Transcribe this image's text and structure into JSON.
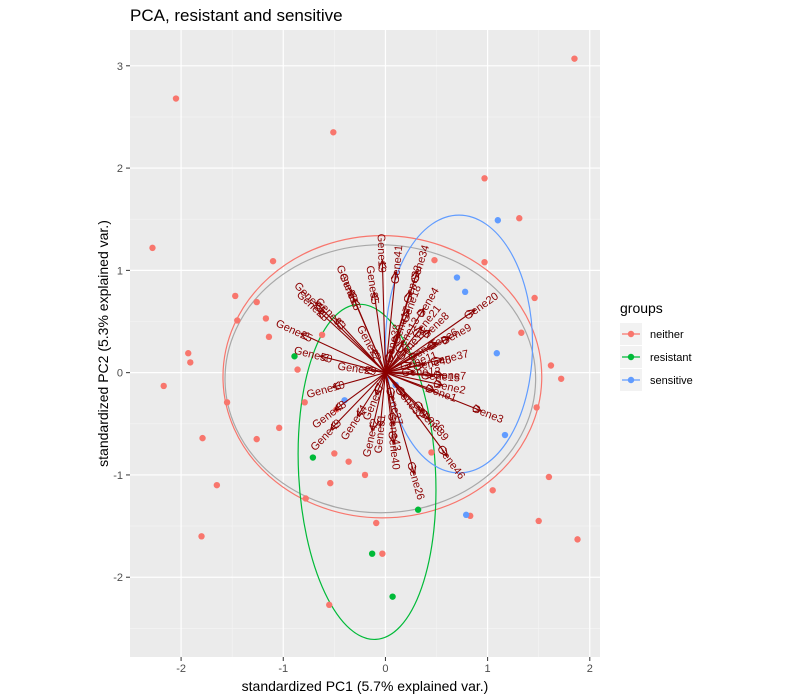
{
  "chart_data": {
    "type": "scatter",
    "title": "PCA, resistant and sensitive",
    "xlabel": "standardized PC1 (5.7% explained var.)",
    "ylabel": "standardized PC2 (5.3% explained var.)",
    "xlim": [
      -2.5,
      2.1
    ],
    "ylim": [
      -2.78,
      3.35
    ],
    "x_ticks": [
      -2,
      -1,
      0,
      1,
      2
    ],
    "y_ticks": [
      -2,
      -1,
      0,
      1,
      2,
      3
    ],
    "grid": true,
    "legend": {
      "title": "groups",
      "position": "right",
      "entries": [
        "neither",
        "resistant",
        "sensitive"
      ]
    },
    "series": [
      {
        "name": "neither",
        "color": "#F8766D",
        "points": [
          [
            1.85,
            3.07
          ],
          [
            -2.05,
            2.68
          ],
          [
            -0.51,
            2.35
          ],
          [
            0.97,
            1.9
          ],
          [
            1.31,
            1.51
          ],
          [
            -2.28,
            1.22
          ],
          [
            -1.1,
            1.09
          ],
          [
            0.48,
            1.1
          ],
          [
            0.97,
            1.08
          ],
          [
            -1.47,
            0.75
          ],
          [
            1.46,
            0.73
          ],
          [
            -1.26,
            0.69
          ],
          [
            -1.17,
            0.53
          ],
          [
            -1.45,
            0.51
          ],
          [
            -0.62,
            0.37
          ],
          [
            1.33,
            0.39
          ],
          [
            -1.14,
            0.35
          ],
          [
            -1.93,
            0.19
          ],
          [
            -1.91,
            0.1
          ],
          [
            1.62,
            0.07
          ],
          [
            1.72,
            -0.06
          ],
          [
            -0.86,
            0.03
          ],
          [
            -2.17,
            -0.13
          ],
          [
            -1.55,
            -0.29
          ],
          [
            -0.79,
            -0.29
          ],
          [
            -0.48,
            -0.36
          ],
          [
            1.48,
            -0.34
          ],
          [
            -1.04,
            -0.54
          ],
          [
            -1.26,
            -0.65
          ],
          [
            -1.79,
            -0.64
          ],
          [
            -0.5,
            -0.79
          ],
          [
            -0.36,
            -0.87
          ],
          [
            0.45,
            -0.78
          ],
          [
            -0.2,
            -1.0
          ],
          [
            1.6,
            -1.02
          ],
          [
            -0.54,
            -1.08
          ],
          [
            1.05,
            -1.15
          ],
          [
            -1.65,
            -1.1
          ],
          [
            -0.78,
            -1.23
          ],
          [
            0.83,
            -1.4
          ],
          [
            -0.09,
            -1.47
          ],
          [
            1.5,
            -1.45
          ],
          [
            -1.8,
            -1.6
          ],
          [
            1.88,
            -1.63
          ],
          [
            -0.03,
            -1.77
          ],
          [
            -0.55,
            -2.27
          ]
        ]
      },
      {
        "name": "resistant",
        "color": "#00BA38",
        "points": [
          [
            -0.89,
            0.16
          ],
          [
            -0.71,
            -0.83
          ],
          [
            0.32,
            -1.34
          ],
          [
            -0.13,
            -1.77
          ],
          [
            0.07,
            -2.19
          ]
        ]
      },
      {
        "name": "sensitive",
        "color": "#619CFF",
        "points": [
          [
            1.1,
            1.49
          ],
          [
            0.7,
            0.93
          ],
          [
            0.78,
            0.79
          ],
          [
            1.09,
            0.19
          ],
          [
            0.1,
            -0.12
          ],
          [
            1.17,
            -0.61
          ],
          [
            0.79,
            -1.39
          ],
          [
            -0.4,
            -0.27
          ]
        ]
      }
    ],
    "ellipses": [
      {
        "name": "neither",
        "color": "#F8766D",
        "cx": -0.03,
        "cy": -0.04,
        "rx": 1.56,
        "ry": 1.38,
        "angle": 0
      },
      {
        "name": "overall",
        "color": "#a8a8a8",
        "cx": -0.05,
        "cy": -0.06,
        "rx": 1.52,
        "ry": 1.31,
        "angle": 0
      },
      {
        "name": "resistant",
        "color": "#00BA38",
        "cx": -0.18,
        "cy": -0.97,
        "rx": 0.67,
        "ry": 1.64,
        "angle": 3
      },
      {
        "name": "sensitive",
        "color": "#619CFF",
        "cx": 0.72,
        "cy": 0.28,
        "rx": 0.72,
        "ry": 1.26,
        "angle": 0
      }
    ],
    "loadings": [
      {
        "name": "Gene24",
        "x": -0.68,
        "y": 0.68
      },
      {
        "name": "Gene30",
        "x": -0.34,
        "y": 0.8
      },
      {
        "name": "Gene16",
        "x": -0.31,
        "y": 0.72
      },
      {
        "name": "Gene19",
        "x": -0.03,
        "y": 1.09
      },
      {
        "name": "Gene41",
        "x": 0.1,
        "y": 0.98
      },
      {
        "name": "Gene35",
        "x": -0.11,
        "y": 0.78
      },
      {
        "name": "Gene28",
        "x": -0.65,
        "y": 0.6
      },
      {
        "name": "Gene33",
        "x": -0.48,
        "y": 0.52
      },
      {
        "name": "Gene25",
        "x": -0.82,
        "y": 0.38
      },
      {
        "name": "Gene50",
        "x": -0.63,
        "y": 0.16
      },
      {
        "name": "Gene34",
        "x": 0.31,
        "y": 0.99
      },
      {
        "name": "Gene23",
        "x": 0.24,
        "y": 0.79
      },
      {
        "name": "Gene18",
        "x": 0.22,
        "y": 0.6
      },
      {
        "name": "Gene4",
        "x": 0.37,
        "y": 0.62
      },
      {
        "name": "Gene20",
        "x": 0.87,
        "y": 0.61
      },
      {
        "name": "Gene21",
        "x": 0.35,
        "y": 0.44
      },
      {
        "name": "Gene8",
        "x": 0.43,
        "y": 0.41
      },
      {
        "name": "Gene9",
        "x": 0.62,
        "y": 0.34
      },
      {
        "name": "Gene6",
        "x": 0.49,
        "y": 0.29
      },
      {
        "name": "Gene37",
        "x": 0.55,
        "y": 0.13
      },
      {
        "name": "Gene11",
        "x": 0.25,
        "y": 0.09
      },
      {
        "name": "Gene45",
        "x": 0.38,
        "y": 0.08
      },
      {
        "name": "Gene12",
        "x": 0.27,
        "y": 0.01
      },
      {
        "name": "Gene7",
        "x": 0.55,
        "y": -0.02
      },
      {
        "name": "Gene15",
        "x": 0.46,
        "y": -0.03
      },
      {
        "name": "Gene2",
        "x": 0.55,
        "y": -0.12
      },
      {
        "name": "Gene1",
        "x": 0.47,
        "y": -0.17
      },
      {
        "name": "Gene3",
        "x": 0.93,
        "y": -0.37
      },
      {
        "name": "Gene36",
        "x": 0.37,
        "y": -0.37
      },
      {
        "name": "Gene39",
        "x": 0.42,
        "y": -0.45
      },
      {
        "name": "Gene46",
        "x": 0.6,
        "y": -0.81
      },
      {
        "name": "Gene43",
        "x": 0.08,
        "y": -0.5
      },
      {
        "name": "Gene26",
        "x": 0.28,
        "y": -0.98
      },
      {
        "name": "Gene40",
        "x": 0.08,
        "y": -0.68
      },
      {
        "name": "Gene31",
        "x": -0.05,
        "y": -0.52
      },
      {
        "name": "Gene42",
        "x": -0.13,
        "y": -0.56
      },
      {
        "name": "Gene44",
        "x": -0.27,
        "y": -0.42
      },
      {
        "name": "Gene10",
        "x": -0.51,
        "y": -0.14
      },
      {
        "name": "Gene48",
        "x": -0.49,
        "y": -0.36
      },
      {
        "name": "Gene49",
        "x": -0.53,
        "y": -0.55
      },
      {
        "name": "Gene13",
        "x": 0.17,
        "y": 0.3
      },
      {
        "name": "Gene14",
        "x": 0.2,
        "y": 0.22
      },
      {
        "name": "Gene17",
        "x": 0.13,
        "y": 0.39
      },
      {
        "name": "Gene22",
        "x": -0.12,
        "y": 0.22
      },
      {
        "name": "Gene27",
        "x": 0.07,
        "y": -0.25
      },
      {
        "name": "Gene29",
        "x": -0.2,
        "y": 0.03
      },
      {
        "name": "Gene32",
        "x": 0.19,
        "y": -0.23
      },
      {
        "name": "Gene38",
        "x": 0.05,
        "y": 0.21
      },
      {
        "name": "Gene47",
        "x": -0.09,
        "y": -0.21
      },
      {
        "name": "Gene5",
        "x": 0.3,
        "y": 0.18
      }
    ]
  }
}
